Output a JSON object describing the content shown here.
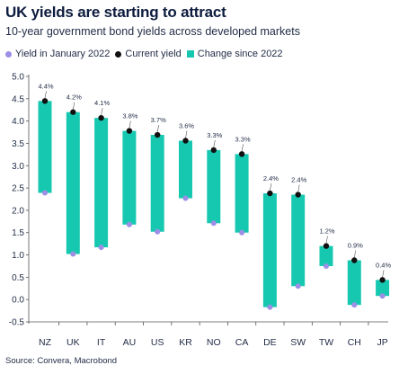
{
  "title": "UK yields are starting to attract",
  "subtitle": "10-year government bond yields across developed markets",
  "source": "Source: Convera, Macrobond",
  "colors": {
    "change": "#17c8b0",
    "jan2022": "#9d8fe6",
    "current": "#111111",
    "text": "#1f2a44",
    "axis": "#555555"
  },
  "legend": {
    "jan2022": "Yield in January 2022",
    "current": "Current yield",
    "change": "Change since 2022"
  },
  "chart_data": {
    "type": "floating-bar",
    "categories": [
      "NZ",
      "UK",
      "IT",
      "AU",
      "US",
      "KR",
      "NO",
      "CA",
      "DE",
      "SW",
      "TW",
      "CH",
      "JP"
    ],
    "series": [
      {
        "name": "Yield in January 2022",
        "values": [
          2.39,
          1.02,
          1.17,
          1.68,
          1.52,
          2.27,
          1.71,
          1.5,
          -0.17,
          0.3,
          0.75,
          -0.12,
          0.08
        ]
      },
      {
        "name": "Current yield",
        "values": [
          4.45,
          4.2,
          4.07,
          3.78,
          3.69,
          3.56,
          3.35,
          3.26,
          2.38,
          2.35,
          1.2,
          0.88,
          0.44
        ]
      }
    ],
    "data_labels": [
      "4.4%",
      "4.2%",
      "4.1%",
      "3.8%",
      "3.7%",
      "3.6%",
      "3.3%",
      "3.3%",
      "2.4%",
      "2.4%",
      "1.2%",
      "0.9%",
      "0.4%"
    ],
    "y_ticks": [
      "5.0",
      "4.5",
      "4.0",
      "3.5",
      "3.0",
      "2.5",
      "2.0",
      "1.5",
      "1.0",
      "0.5",
      "0.0",
      "-0.5"
    ],
    "ylim": [
      -0.5,
      5.0
    ],
    "grid": false,
    "legend_position": "top-left"
  }
}
